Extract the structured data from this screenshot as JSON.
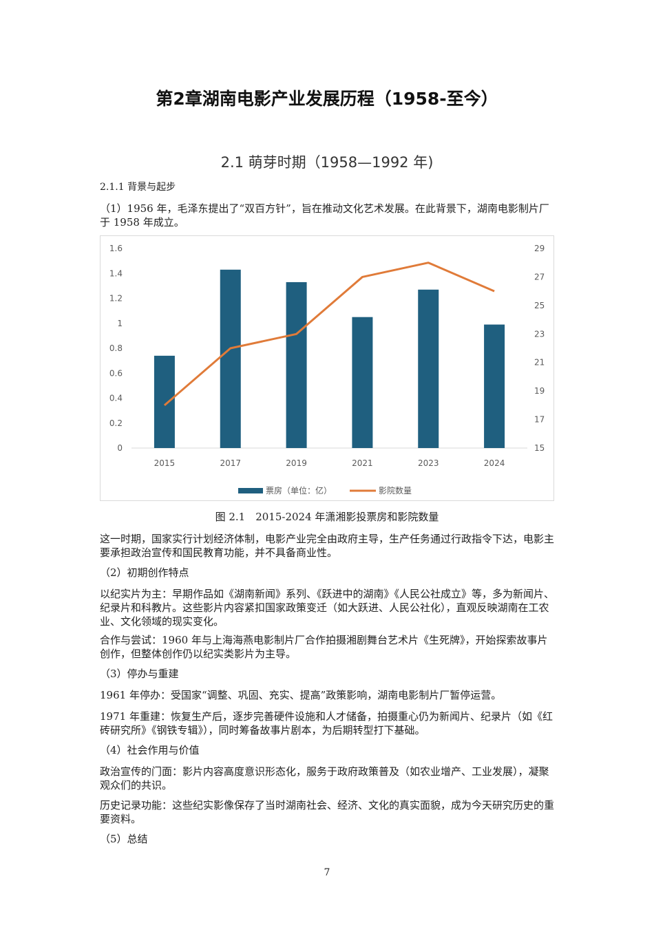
{
  "document": {
    "chapter_title": "第2章湖南电影产业发展历程（1958-至今）",
    "section_title": "2.1 萌芽时期（1958—1992 年)",
    "subsection": "2.1.1 背景与起步",
    "paragraphs": [
      "（1）1956 年，毛泽东提出了“双百方针”，旨在推动文化艺术发展。在此背景下，湖南电影制片厂于 1958 年成立。",
      "这一时期，国家实行计划经济体制，电影产业完全由政府主导，生产任务通过行政指令下达，电影主要承担政治宣传和国民教育功能，并不具备商业性。",
      "（2）初期创作特点",
      "以纪实片为主：早期作品如《湖南新闻》系列、《跃进中的湖南》《人民公社成立》等，多为新闻片、纪录片和科教片。这些影片内容紧扣国家政策变迁（如大跃进、人民公社化），直观反映湖南在工农业、文化领域的现实变化。",
      "合作与尝试：1960 年与上海海燕电影制片厂合作拍摄湘剧舞台艺术片《生死牌》，开始探索故事片创作，但整体创作仍以纪实类影片为主导。",
      "（3）停办与重建",
      "1961 年停办：受国家“调整、巩固、充实、提高”政策影响，湖南电影制片厂暂停运营。",
      "1971 年重建：恢复生产后，逐步完善硬件设施和人才储备，拍摄重心仍为新闻片、纪录片（如《红砖研究所》《钢铁专辑》），同时筹备故事片剧本，为后期转型打下基础。",
      "（4）社会作用与价值",
      "政治宣传的门面：影片内容高度意识形态化，服务于政府政策普及（如农业增产、工业发展），凝聚观众们的共识。",
      "历史记录功能：这些纪实影像保存了当时湖南社会、经济、文化的真实面貌，成为今天研究历史的重要资料。",
      "（5）总结"
    ],
    "figure_caption": "图 2.1　2015-2024 年潇湘影投票房和影院数量",
    "page_number": "7"
  },
  "chart_data": {
    "type": "bar",
    "categories": [
      "2015",
      "2017",
      "2019",
      "2021",
      "2023",
      "2024"
    ],
    "series": [
      {
        "name": "票房（单位：亿）",
        "type": "bar",
        "axis": "left",
        "color": "#1f5f7f",
        "values": [
          0.74,
          1.43,
          1.33,
          1.05,
          1.27,
          0.99
        ]
      },
      {
        "name": "影院数量",
        "type": "line",
        "axis": "right",
        "color": "#e07b39",
        "values": [
          18,
          22,
          23,
          27,
          28,
          26
        ]
      }
    ],
    "y_left": {
      "min": 0,
      "max": 1.6,
      "ticks": [
        "0",
        "0.2",
        "0.4",
        "0.6",
        "0.8",
        "1",
        "1.2",
        "1.4",
        "1.6"
      ]
    },
    "y_right": {
      "min": 15,
      "max": 29,
      "ticks": [
        "15",
        "17",
        "19",
        "21",
        "23",
        "25",
        "27",
        "29"
      ]
    },
    "grid": false,
    "legend": "bottom"
  }
}
